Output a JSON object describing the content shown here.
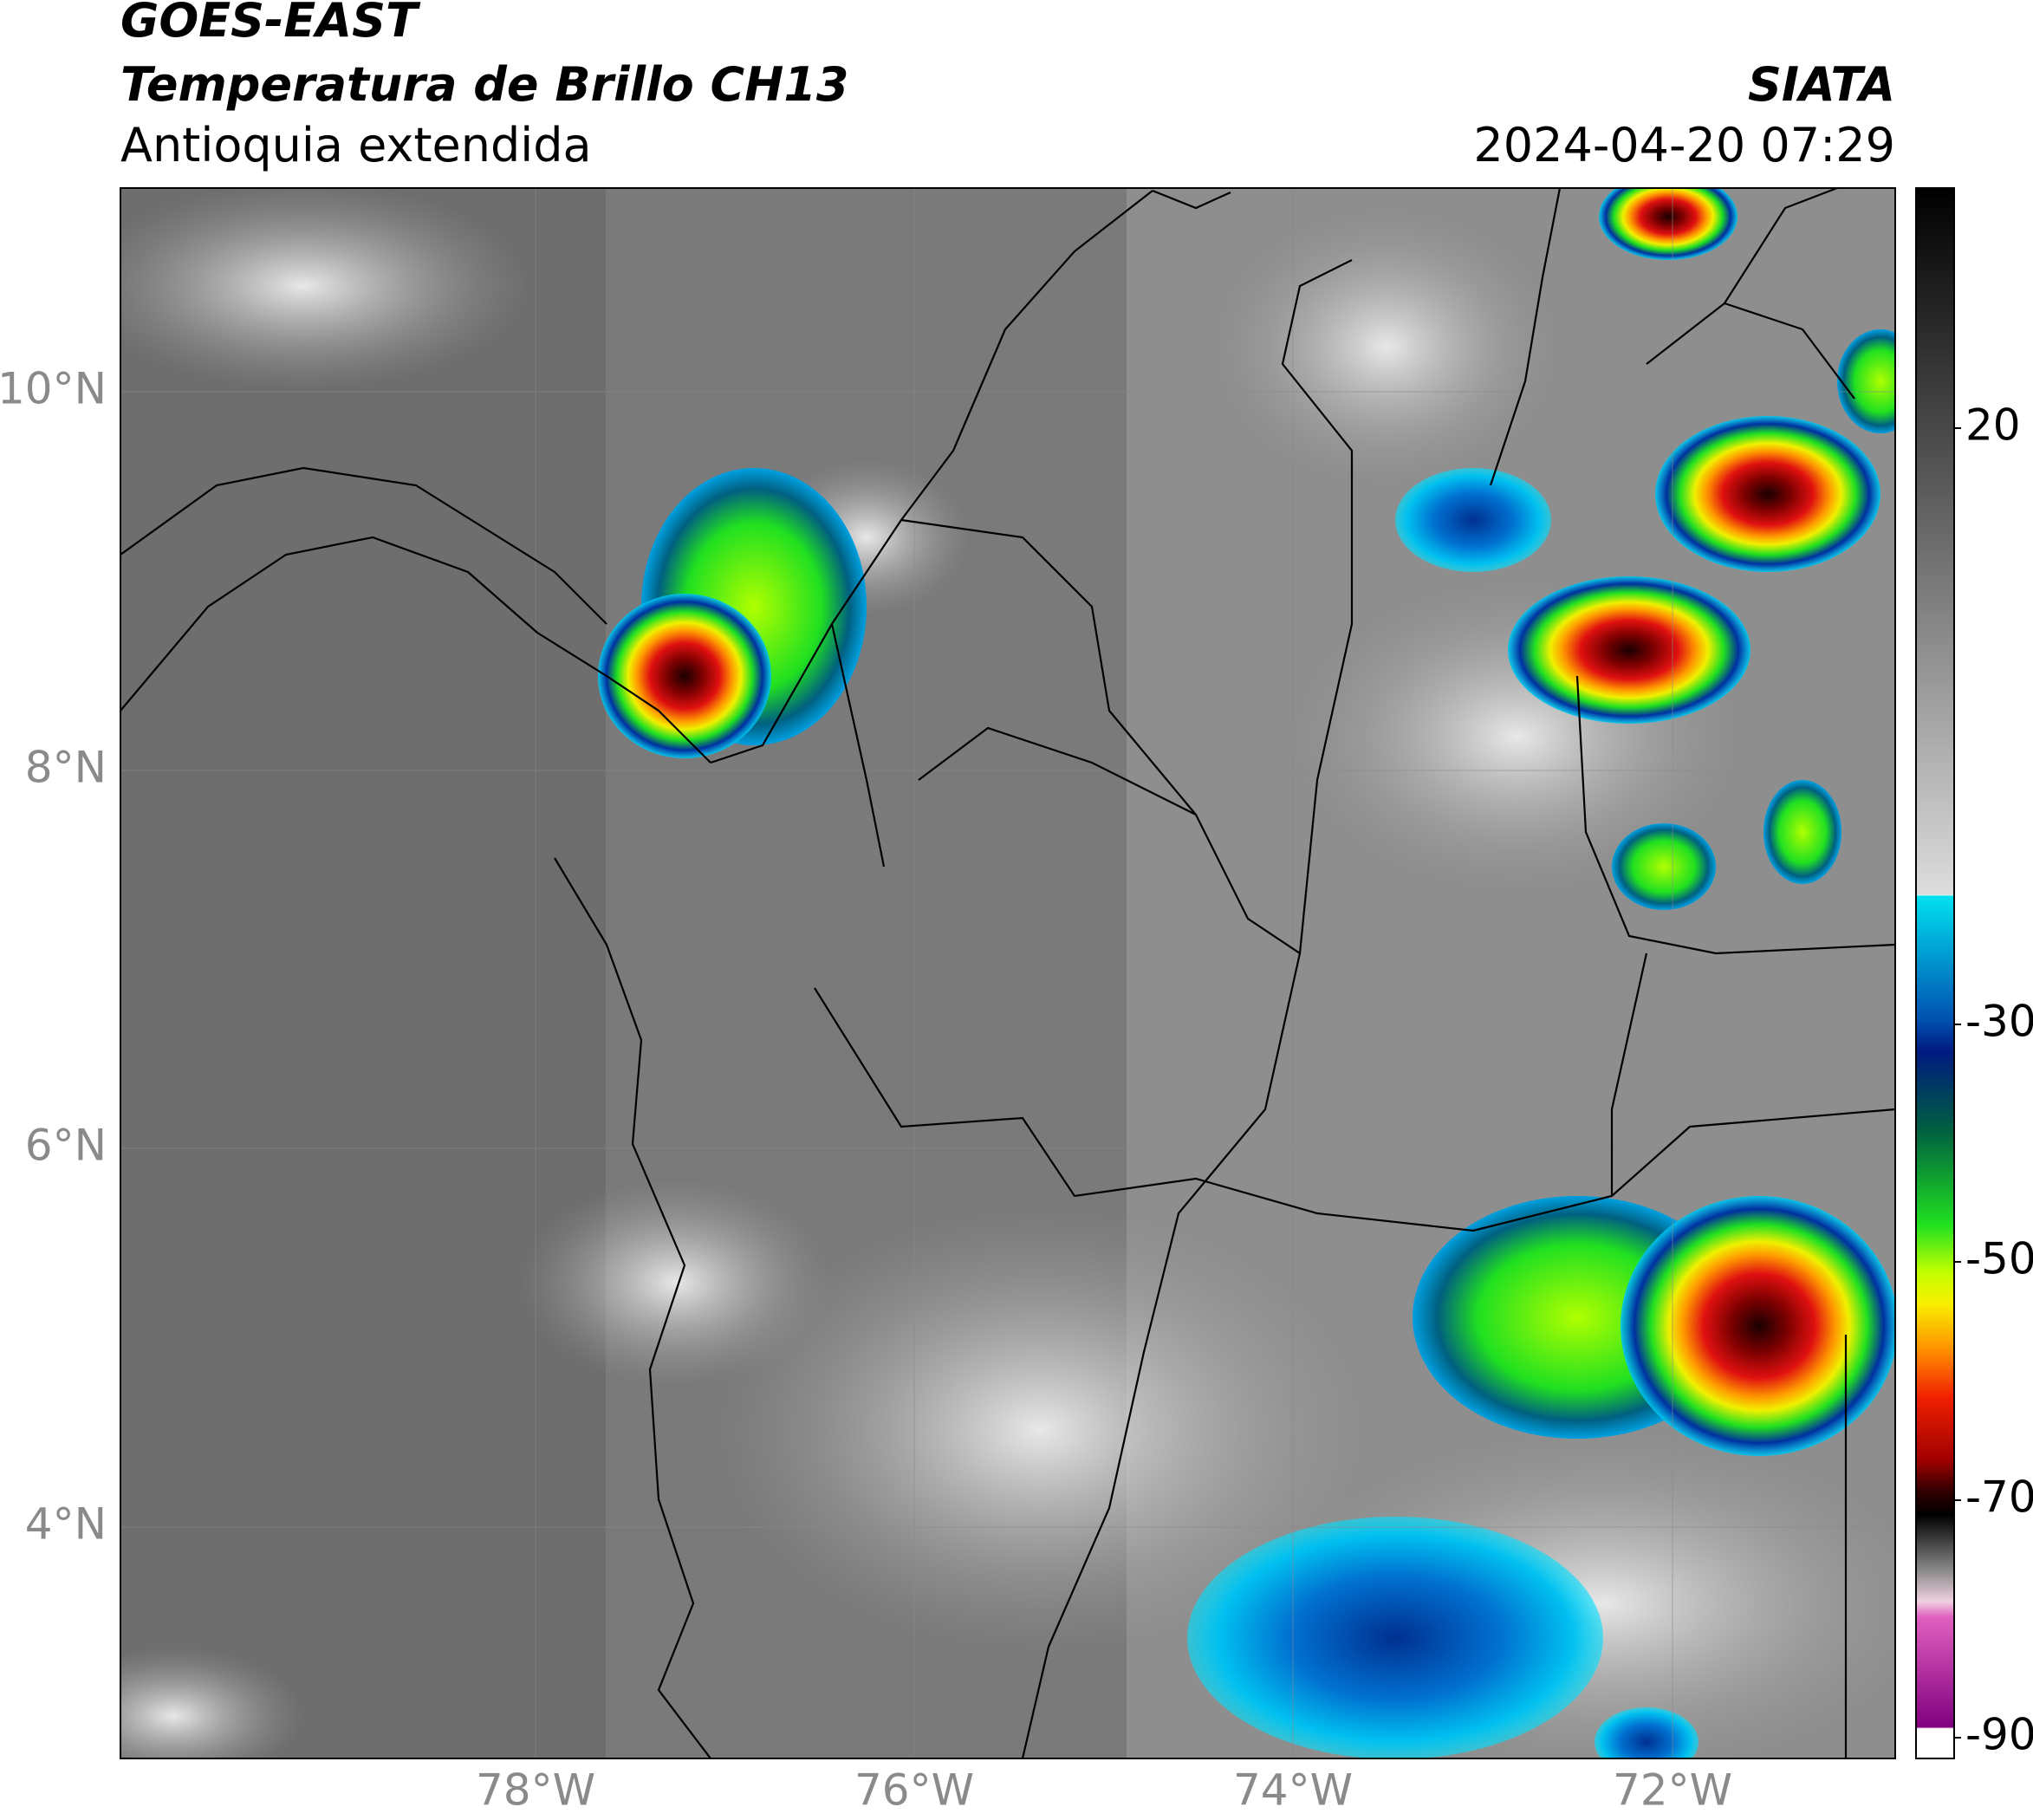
{
  "header": {
    "title_line1": "GOES-EAST",
    "title_line2": "Temperatura de Brillo CH13",
    "subtitle": "Antioquia extendida",
    "agency": "SIATA",
    "datetime": "2024-04-20 07:29"
  },
  "map": {
    "lat_labels": [
      "10°N",
      "8°N",
      "6°N",
      "4°N"
    ],
    "lon_labels": [
      "78°W",
      "76°W",
      "74°W",
      "72°W"
    ]
  },
  "colorbar": {
    "tick_labels": [
      "20",
      "-30",
      "-50",
      "-70",
      "-90"
    ]
  }
}
